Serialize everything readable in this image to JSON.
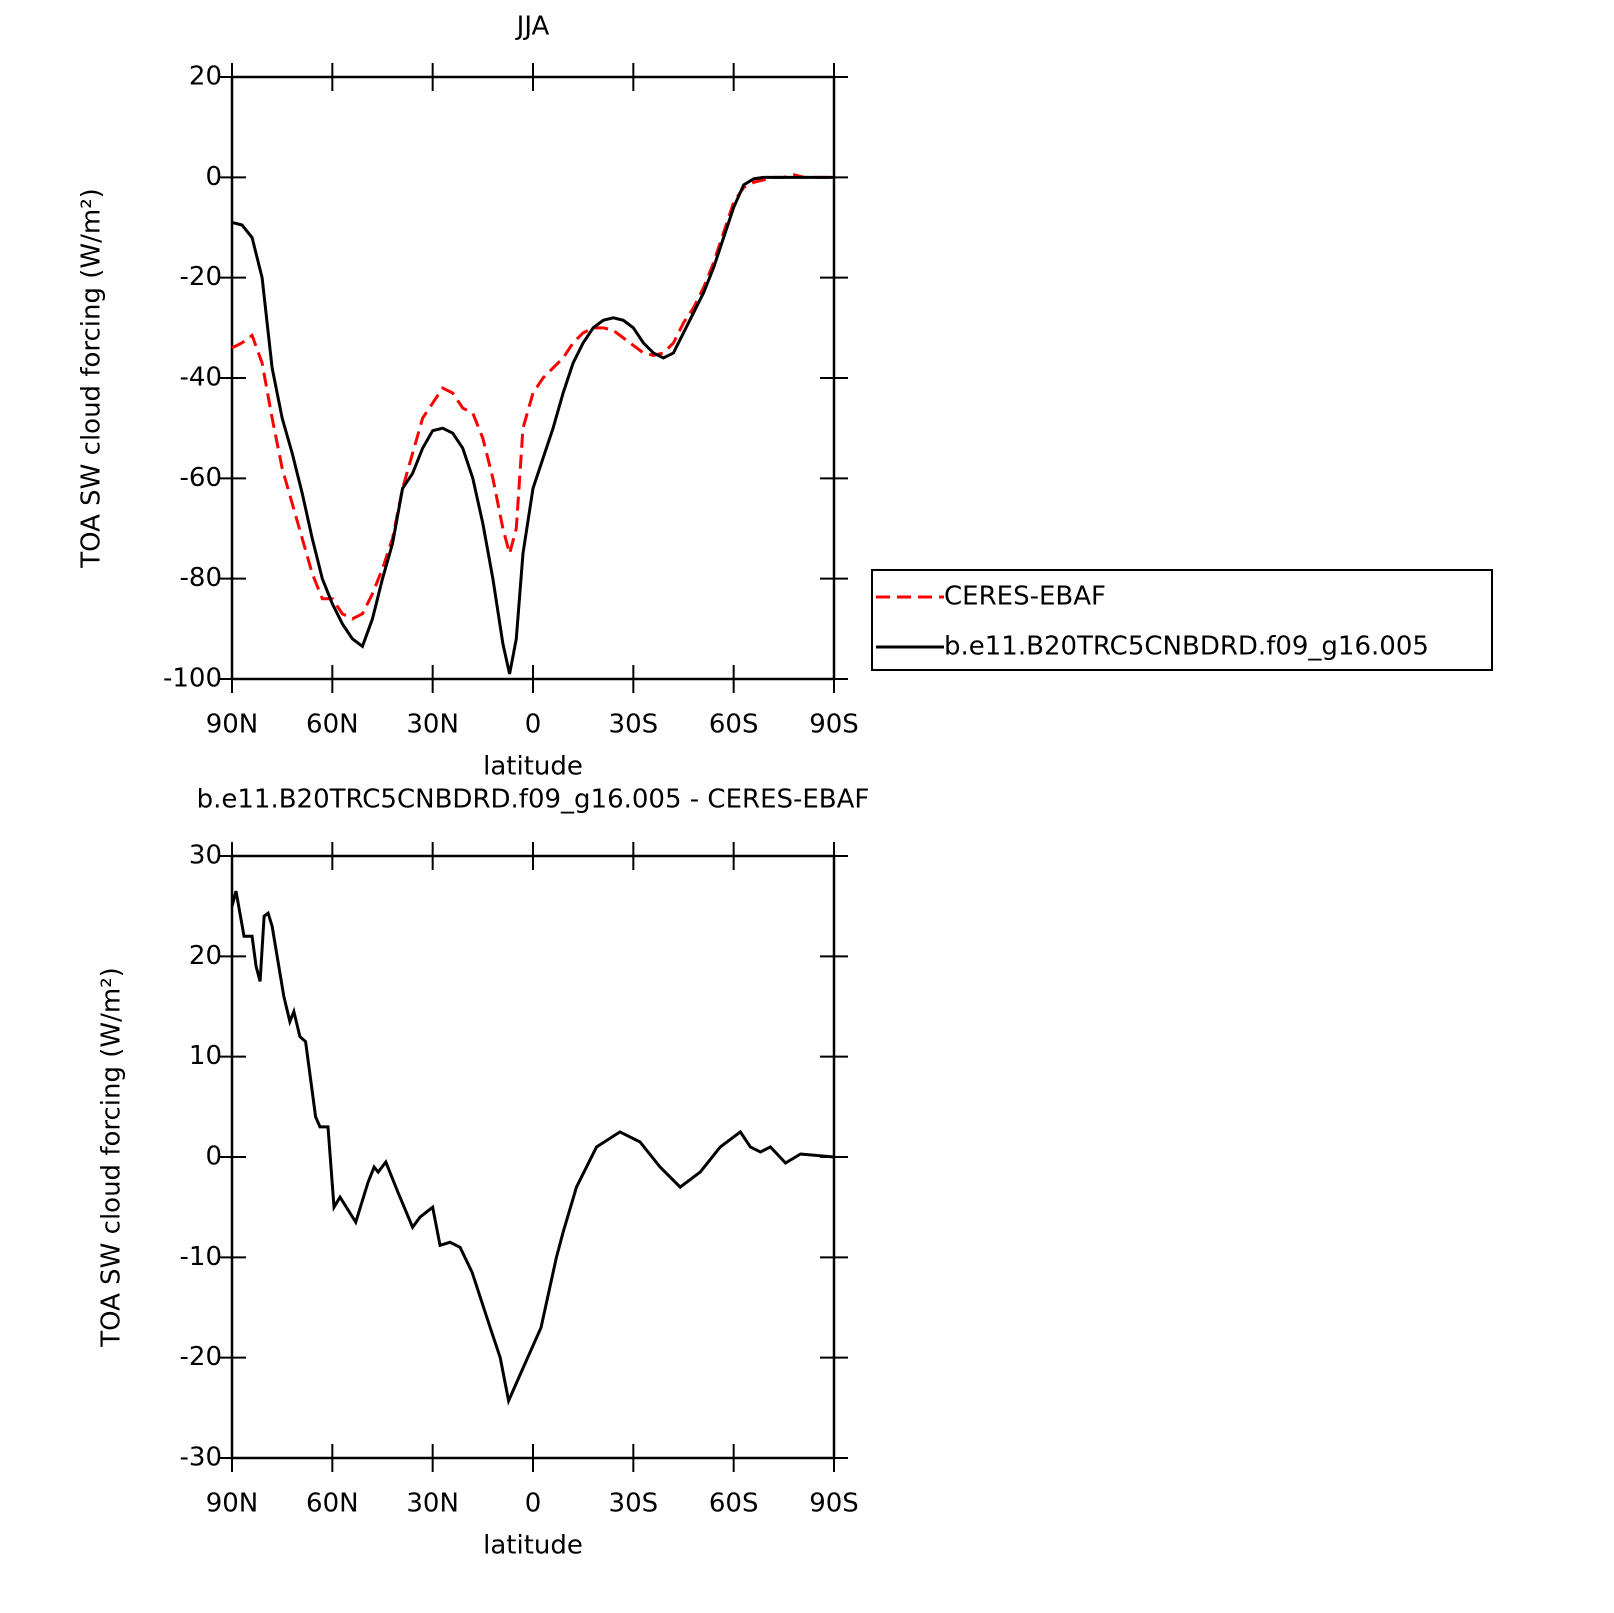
{
  "chart_data": [
    {
      "type": "line",
      "title": "JJA",
      "xlabel": "latitude",
      "ylabel": "TOA SW cloud forcing (W/m²)",
      "x": [
        90,
        87,
        84,
        81,
        78,
        75,
        72,
        69,
        66,
        63,
        60,
        57,
        54,
        51,
        48,
        45,
        42,
        39,
        36,
        33,
        30,
        27,
        24,
        21,
        18,
        15,
        12,
        9,
        7,
        5,
        3,
        0,
        -3,
        -6,
        -9,
        -12,
        -15,
        -18,
        -21,
        -24,
        -27,
        -30,
        -33,
        -36,
        -39,
        -42,
        -45,
        -48,
        -51,
        -54,
        -57,
        -60,
        -63,
        -66,
        -69,
        -72,
        -75,
        -78,
        -81,
        -84,
        -87,
        -90
      ],
      "series": [
        {
          "name": "CERES-EBAF",
          "color": "#ff0000",
          "linestyle": "dashed",
          "values": [
            -34,
            -33,
            -31.5,
            -37,
            -48,
            -58,
            -65,
            -72,
            -79,
            -84,
            -84,
            -87,
            -88,
            -87,
            -83,
            -78,
            -72,
            -62,
            -55,
            -48,
            -45,
            -42,
            -43,
            -46,
            -47,
            -52,
            -60,
            -70,
            -75,
            -70,
            -50,
            -43,
            -40,
            -38,
            -36,
            -33,
            -31,
            -30,
            -30,
            -30.5,
            -32,
            -33.5,
            -35,
            -35.5,
            -35,
            -33,
            -29,
            -26,
            -22,
            -17,
            -11,
            -5,
            -2,
            -1,
            -0.5,
            0,
            0,
            0.5,
            0,
            0,
            0,
            0
          ]
        },
        {
          "name": "b.e11.B20TRC5CNBDRD.f09_g16.005",
          "color": "#000000",
          "linestyle": "solid",
          "values": [
            -9,
            -9.5,
            -12,
            -20,
            -38,
            -48,
            -55,
            -63,
            -72,
            -80,
            -85,
            -89,
            -92,
            -93.5,
            -88,
            -80,
            -73,
            -62,
            -59,
            -54,
            -50.5,
            -50,
            -51,
            -54,
            -60,
            -69,
            -80,
            -93,
            -99,
            -92,
            -75,
            -62,
            -56,
            -50,
            -43,
            -37,
            -33,
            -30,
            -28.5,
            -28,
            -28.5,
            -30,
            -33,
            -35,
            -36,
            -35,
            -31,
            -27,
            -23,
            -18,
            -12,
            -6,
            -1.5,
            -0.3,
            0,
            0,
            0,
            0,
            0,
            0,
            0,
            0
          ]
        }
      ],
      "xlim": [
        90,
        -90
      ],
      "ylim": [
        -100,
        20
      ],
      "xticks": [
        {
          "value": 90,
          "label": "90N"
        },
        {
          "value": 60,
          "label": "60N"
        },
        {
          "value": 30,
          "label": "30N"
        },
        0,
        {
          "value": -30,
          "label": "30S"
        },
        {
          "value": -60,
          "label": "60S"
        },
        {
          "value": -90,
          "label": "90S"
        }
      ],
      "yticks": [
        -100,
        -80,
        -60,
        -40,
        -20,
        0,
        20
      ],
      "legend": "outside-right"
    },
    {
      "type": "line",
      "title": "b.e11.B20TRC5CNBDRD.f09_g16.005 - CERES-EBAF",
      "xlabel": "latitude",
      "ylabel": "TOA SW cloud forcing (W/m²)",
      "x": [
        90,
        88.8,
        86.4,
        84,
        82.8,
        81.6,
        80.4,
        79.2,
        78,
        74.5,
        72.7,
        71.5,
        69.7,
        68,
        65,
        63.7,
        61.3,
        59.5,
        57.7,
        53,
        49.3,
        47.5,
        46.3,
        44,
        40.4,
        36,
        33.8,
        30,
        27.8,
        24.8,
        21.8,
        18.2,
        12.8,
        9.8,
        7.3,
        3.6,
        -2.4,
        -7,
        -9,
        -13,
        -19,
        -26,
        -32,
        -38,
        -44,
        -50,
        -56,
        -62,
        -65,
        -68,
        -71,
        -75.5,
        -80,
        -90
      ],
      "series": [
        {
          "color": "#000000",
          "linestyle": "solid",
          "values": [
            25,
            26.5,
            22,
            22,
            19,
            17.5,
            24,
            24.3,
            23,
            16,
            13.5,
            14.5,
            12,
            11.5,
            4,
            3,
            3,
            -5,
            -4,
            -6.5,
            -2.5,
            -1,
            -1.5,
            -0.5,
            -3.5,
            -7,
            -6,
            -5,
            -8.8,
            -8.5,
            -9,
            -11.5,
            -17,
            -20,
            -24.3,
            -21.5,
            -17,
            -10,
            -7.5,
            -3,
            1,
            2.5,
            1.5,
            -1,
            -3,
            -1.5,
            1,
            2.5,
            1,
            0.5,
            1,
            -0.6,
            0.3,
            0
          ]
        }
      ],
      "xlim": [
        90,
        -90
      ],
      "ylim": [
        -30,
        30
      ],
      "xticks": [
        {
          "value": 90,
          "label": "90N"
        },
        {
          "value": 60,
          "label": "60N"
        },
        {
          "value": 30,
          "label": "30N"
        },
        0,
        {
          "value": -30,
          "label": "30S"
        },
        {
          "value": -60,
          "label": "60S"
        },
        {
          "value": -90,
          "label": "90S"
        }
      ],
      "yticks": [
        -30,
        -20,
        -10,
        0,
        10,
        20,
        30
      ]
    }
  ]
}
